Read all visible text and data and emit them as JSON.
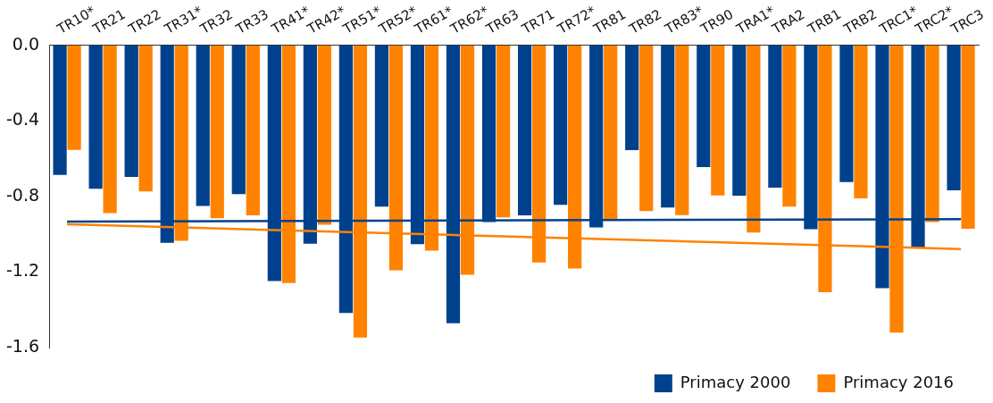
{
  "chart_data": {
    "type": "bar",
    "categories": [
      "TR10*",
      "TR21",
      "TR22",
      "TR31*",
      "TR32",
      "TR33",
      "TR41*",
      "TR42*",
      "TR51*",
      "TR52*",
      "TR61*",
      "TR62*",
      "TR63",
      "TR71",
      "TR72*",
      "TR81",
      "TR82",
      "TR83*",
      "TR90",
      "TRA1*",
      "TRA2",
      "TRB1",
      "TRB2",
      "TRC1*",
      "TRC2*",
      "TRC3"
    ],
    "series": [
      {
        "name": "Primacy 2000",
        "color": "#00418d",
        "values": [
          -0.686,
          -0.759,
          -0.697,
          -1.045,
          -0.85,
          -0.787,
          -1.247,
          -1.05,
          -1.417,
          -0.854,
          -1.052,
          -1.471,
          -0.935,
          -0.9,
          -0.844,
          -0.964,
          -0.555,
          -0.859,
          -0.645,
          -0.796,
          -0.753,
          -0.973,
          -0.724,
          -1.286,
          -1.074,
          -0.768
        ]
      },
      {
        "name": "Primacy 2016",
        "color": "#ff8200",
        "values": [
          -0.553,
          -0.888,
          -0.773,
          -1.035,
          -0.915,
          -0.9,
          -1.258,
          -0.95,
          -1.547,
          -1.191,
          -1.087,
          -1.214,
          -0.91,
          -1.15,
          -1.181,
          -0.923,
          -0.877,
          -0.899,
          -0.795,
          -0.991,
          -0.854,
          -1.307,
          -0.81,
          -1.521,
          -0.935,
          -0.971
        ]
      },
      {
        "type": "line",
        "color": "#00418d",
        "values": [
          -0.933,
          null,
          null,
          null,
          null,
          null,
          null,
          null,
          null,
          null,
          null,
          null,
          null,
          null,
          null,
          null,
          null,
          null,
          null,
          null,
          null,
          null,
          null,
          null,
          null,
          -0.92
        ]
      },
      {
        "type": "line",
        "color": "#ff8200",
        "values": [
          -0.947,
          null,
          null,
          null,
          null,
          null,
          null,
          null,
          null,
          null,
          null,
          null,
          null,
          null,
          null,
          null,
          null,
          null,
          null,
          null,
          null,
          null,
          null,
          null,
          null,
          -1.078
        ]
      }
    ],
    "ylim": [
      -1.6,
      0
    ],
    "yticks": [
      {
        "value": -1.6,
        "label": "-1.6"
      },
      {
        "value": -1.2,
        "label": "-1.2"
      },
      {
        "value": -0.8,
        "label": "-0.8"
      },
      {
        "value": -0.4,
        "label": "-0.4"
      },
      {
        "value": 0,
        "label": "0.0"
      }
    ],
    "marker": "none",
    "legend": "bottom right"
  }
}
